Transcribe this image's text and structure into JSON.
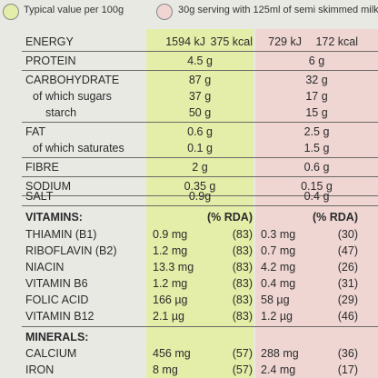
{
  "legend": {
    "green_label": "Typical value per 100g",
    "pink_label": "30g serving with 125ml of semi skimmed milk",
    "green_color": "#e4eea8",
    "pink_color": "#efd6d3"
  },
  "energy": {
    "label": "ENERGY",
    "g_kj": "1594 kJ",
    "g_kcal": "375 kcal",
    "p_kj": "729 kJ",
    "p_kcal": "172 kcal"
  },
  "protein": {
    "label": "PROTEIN",
    "g": "4.5 g",
    "p": "6 g"
  },
  "carbohydrate": {
    "label": "CARBOHYDRATE",
    "g": "87 g",
    "p": "32 g"
  },
  "sugars": {
    "label": "of which sugars",
    "g": "37 g",
    "p": "17 g"
  },
  "starch": {
    "label": "starch",
    "g": "50 g",
    "p": "15 g"
  },
  "fat": {
    "label": "FAT",
    "g": "0.6 g",
    "p": "2.5 g"
  },
  "saturates": {
    "label": "of which saturates",
    "g": "0.1 g",
    "p": "1.5 g"
  },
  "fibre": {
    "label": "FIBRE",
    "g": "2 g",
    "p": "0.6 g"
  },
  "sodium": {
    "label": "SODIUM",
    "g": "0.35 g",
    "p": "0.15 g"
  },
  "salt": {
    "label": "SALT",
    "g": "0.9g",
    "p": "0.4 g"
  },
  "vitamins": {
    "label": "VITAMINS:",
    "rda_label": "(% RDA)",
    "items": [
      {
        "name": "THIAMIN (B1)",
        "g": "0.9 mg",
        "g_rda": "(83)",
        "p": "0.3 mg",
        "p_rda": "(30)"
      },
      {
        "name": "RIBOFLAVIN (B2)",
        "g": "1.2 mg",
        "g_rda": "(83)",
        "p": "0.7 mg",
        "p_rda": "(47)"
      },
      {
        "name": "NIACIN",
        "g": "13.3 mg",
        "g_rda": "(83)",
        "p": "4.2 mg",
        "p_rda": "(26)"
      },
      {
        "name": "VITAMIN B6",
        "g": "1.2 mg",
        "g_rda": "(83)",
        "p": "0.4 mg",
        "p_rda": "(31)"
      },
      {
        "name": "FOLIC ACID",
        "g": "166 µg",
        "g_rda": "(83)",
        "p": "58 µg",
        "p_rda": "(29)"
      },
      {
        "name": "VITAMIN B12",
        "g": "2.1 µg",
        "g_rda": "(83)",
        "p": "1.2 µg",
        "p_rda": "(46)"
      }
    ]
  },
  "minerals": {
    "label": "MINERALS:",
    "items": [
      {
        "name": "CALCIUM",
        "g": "456 mg",
        "g_rda": "(57)",
        "p": "288 mg",
        "p_rda": "(36)"
      },
      {
        "name": "IRON",
        "g": "8 mg",
        "g_rda": "(57)",
        "p": "2.4 mg",
        "p_rda": "(17)"
      }
    ]
  }
}
